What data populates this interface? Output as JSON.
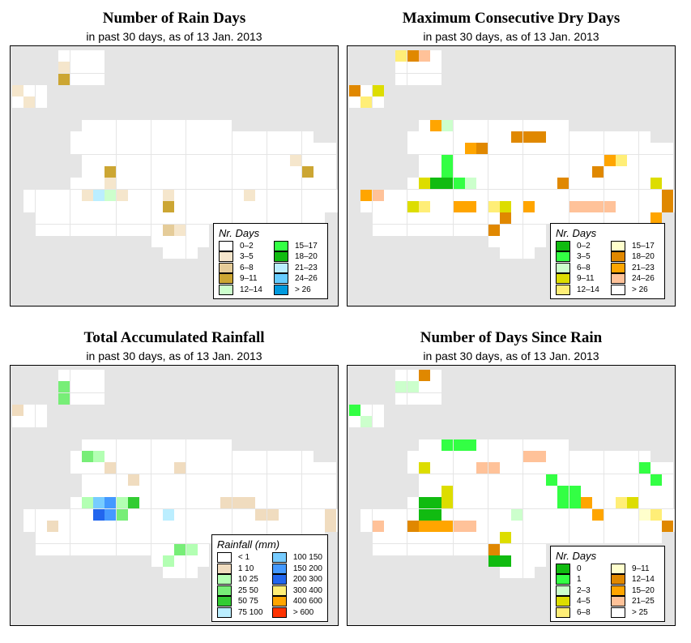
{
  "panels": [
    {
      "title": "Number of Rain Days",
      "subtitle": "in past 30 days, as of  13 Jan. 2013",
      "legend": {
        "title": "Nr. Days",
        "items": [
          {
            "label": "0–2",
            "color": "#ffffff"
          },
          {
            "label": "3–5",
            "color": "#f5e6cc"
          },
          {
            "label": "6–8",
            "color": "#e5cc99"
          },
          {
            "label": "9–11",
            "color": "#cca633"
          },
          {
            "label": "12–14",
            "color": "#ccffcc"
          },
          {
            "label": "15–17",
            "color": "#33ff44"
          },
          {
            "label": "18–20",
            "color": "#11bb11"
          },
          {
            "label": "21–23",
            "color": "#bbeeff"
          },
          {
            "label": "24–26",
            "color": "#66ccff"
          },
          {
            "label": "> 26",
            "color": "#0099dd"
          }
        ]
      }
    },
    {
      "title": "Maximum Consecutive Dry Days",
      "subtitle": "in past 30 days, as of  13 Jan. 2013",
      "legend": {
        "title": "Nr. Days",
        "items": [
          {
            "label": "0–2",
            "color": "#11bb11"
          },
          {
            "label": "3–5",
            "color": "#33ff44"
          },
          {
            "label": "6–8",
            "color": "#ccffcc"
          },
          {
            "label": "9–11",
            "color": "#dddd00"
          },
          {
            "label": "12–14",
            "color": "#ffee77"
          },
          {
            "label": "15–17",
            "color": "#ffffcc"
          },
          {
            "label": "18–20",
            "color": "#e08800"
          },
          {
            "label": "21–23",
            "color": "#ffa500"
          },
          {
            "label": "24–26",
            "color": "#ffc299"
          },
          {
            "label": "> 26",
            "color": "#ffffff"
          }
        ]
      }
    },
    {
      "title": "Total Accumulated Rainfall",
      "subtitle": "in past 30 days, as of  13 Jan. 2013",
      "legend": {
        "title": "Rainfall (mm)",
        "items": [
          {
            "label": "< 1",
            "color": "#ffffff"
          },
          {
            "label": "1   10",
            "color": "#f0dcbf"
          },
          {
            "label": "10   25",
            "color": "#b3ffb3"
          },
          {
            "label": "25   50",
            "color": "#77ee77"
          },
          {
            "label": "50   75",
            "color": "#33cc33"
          },
          {
            "label": "75  100",
            "color": "#bbeeff"
          },
          {
            "label": "100  150",
            "color": "#77ccff"
          },
          {
            "label": "150  200",
            "color": "#4499ff"
          },
          {
            "label": "200  300",
            "color": "#2266ee"
          },
          {
            "label": "300  400",
            "color": "#ffee77"
          },
          {
            "label": "400  600",
            "color": "#ffa500"
          },
          {
            "label": "> 600",
            "color": "#ff3300"
          }
        ]
      }
    },
    {
      "title": "Number of Days Since Rain",
      "subtitle": "in past 30 days, as of  13 Jan. 2013",
      "legend": {
        "title": "Nr. Days",
        "items": [
          {
            "label": "0",
            "color": "#11bb11"
          },
          {
            "label": "1",
            "color": "#33ff44"
          },
          {
            "label": "2–3",
            "color": "#ccffcc"
          },
          {
            "label": "4–5",
            "color": "#dddd00"
          },
          {
            "label": "6–8",
            "color": "#ffee77"
          },
          {
            "label": "9–11",
            "color": "#ffffcc"
          },
          {
            "label": "12–14",
            "color": "#e08800"
          },
          {
            "label": "15–20",
            "color": "#ffa500"
          },
          {
            "label": "21–25",
            "color": "#ffc299"
          },
          {
            "label": "> 25",
            "color": "#ffffff"
          }
        ]
      }
    }
  ]
}
